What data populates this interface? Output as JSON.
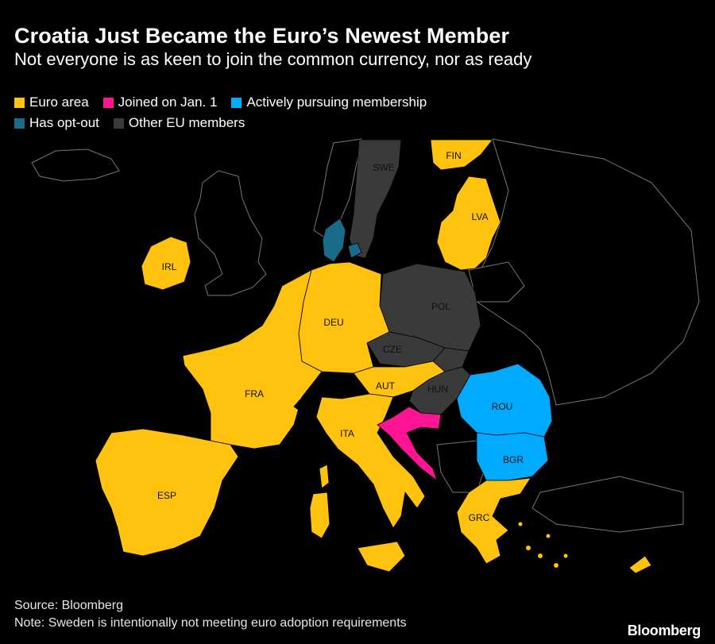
{
  "header": {
    "title": "Croatia Just Became the Euro’s Newest Member",
    "subtitle": "Not everyone is as keen to join the common currency, nor as ready"
  },
  "legend": {
    "items": [
      {
        "label": "Euro area",
        "color": "#ffc20e"
      },
      {
        "label": "Joined on Jan. 1",
        "color": "#ff1493"
      },
      {
        "label": "Actively pursuing membership",
        "color": "#00aaff"
      },
      {
        "label": "Has opt-out",
        "color": "#1a6a8a"
      },
      {
        "label": "Other EU members",
        "color": "#3a3a3a"
      }
    ]
  },
  "map": {
    "countries": {
      "FIN": {
        "label": "FIN",
        "status": "Euro area"
      },
      "SWE": {
        "label": "SWE",
        "status": "Other EU members"
      },
      "LVA": {
        "label": "LVA",
        "status": "Euro area"
      },
      "IRL": {
        "label": "IRL",
        "status": "Euro area"
      },
      "POL": {
        "label": "POL",
        "status": "Other EU members"
      },
      "DEU": {
        "label": "DEU",
        "status": "Euro area"
      },
      "CZE": {
        "label": "CZE",
        "status": "Other EU members"
      },
      "FRA": {
        "label": "FRA",
        "status": "Euro area"
      },
      "AUT": {
        "label": "AUT",
        "status": "Euro area"
      },
      "HUN": {
        "label": "HUN",
        "status": "Other EU members"
      },
      "ROU": {
        "label": "ROU",
        "status": "Actively pursuing membership"
      },
      "ITA": {
        "label": "ITA",
        "status": "Euro area"
      },
      "HRV": {
        "label": "",
        "status": "Joined on Jan. 1"
      },
      "BGR": {
        "label": "BGR",
        "status": "Actively pursuing membership"
      },
      "ESP": {
        "label": "ESP",
        "status": "Euro area"
      },
      "GRC": {
        "label": "GRC",
        "status": "Euro area"
      },
      "DNK": {
        "label": "",
        "status": "Has opt-out"
      }
    }
  },
  "footer": {
    "source": "Source: Bloomberg",
    "note": "Note: Sweden is intentionally not meeting euro adoption requirements"
  },
  "brand": "Bloomberg"
}
